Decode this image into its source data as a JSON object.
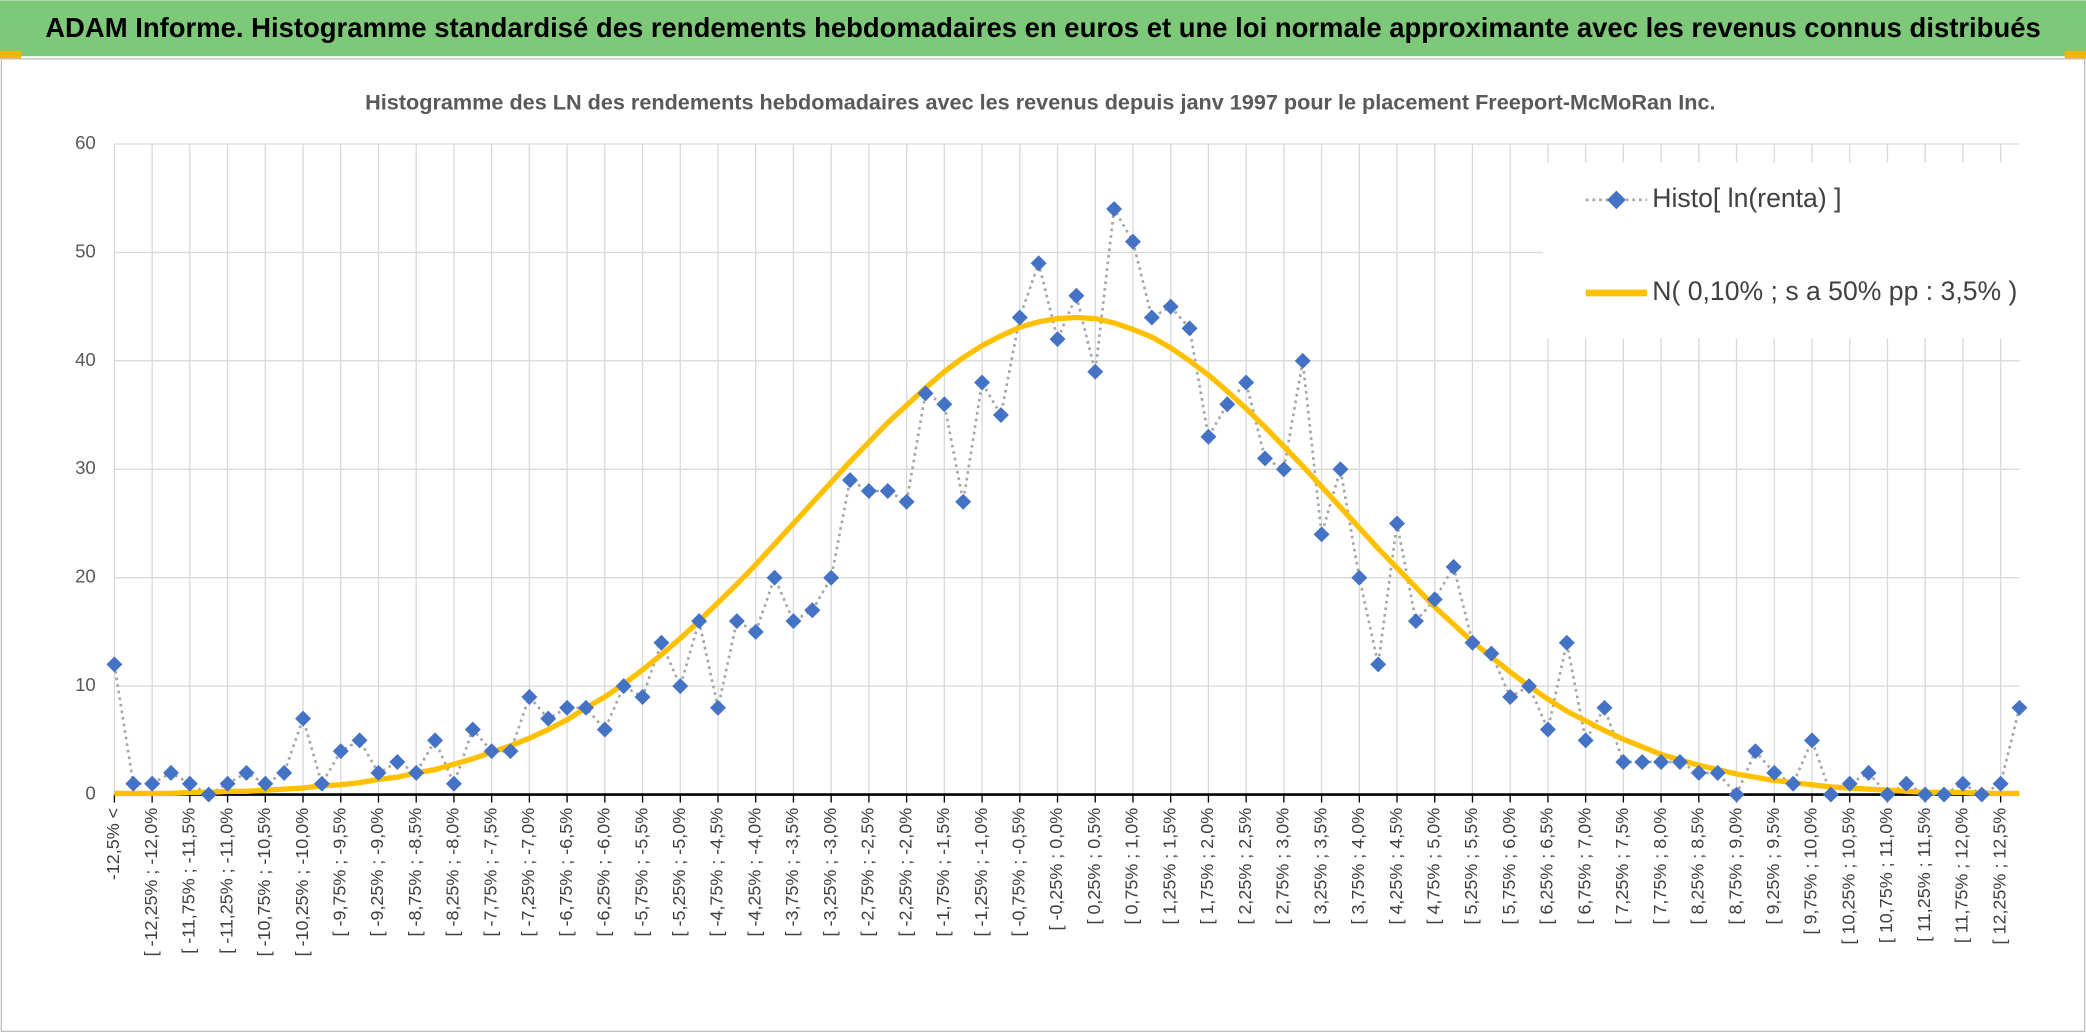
{
  "header": {
    "title": "ADAM Informe. Histogramme standardisé des rendements hebdomadaires en euros et une loi normale approximante avec les revenus connus distribués"
  },
  "chart_data": {
    "type": "line",
    "title": "Histogramme des LN des rendements hebdomadaires avec les revenus depuis janv 1997 pour le placement Freeport-McMoRan  Inc.",
    "categories": [
      "-12,5% <",
      null,
      "[ -12,25% ; -12,0%",
      null,
      "[ -11,75% ; -11,5%",
      null,
      "[ -11,25% ; -11,0%",
      null,
      "[ -10,75% ; -10,5%",
      null,
      "[ -10,25% ; -10,0%",
      null,
      "[ -9,75% ; -9,5%",
      null,
      "[ -9,25% ; -9,0%",
      null,
      "[ -8,75% ; -8,5%",
      null,
      "[ -8,25% ; -8,0%",
      null,
      "[ -7,75% ; -7,5%",
      null,
      "[ -7,25% ; -7,0%",
      null,
      "[ -6,75% ; -6,5%",
      null,
      "[ -6,25% ; -6,0%",
      null,
      "[ -5,75% ; -5,5%",
      null,
      "[ -5,25% ; -5,0%",
      null,
      "[ -4,75% ; -4,5%",
      null,
      "[ -4,25% ; -4,0%",
      null,
      "[ -3,75% ; -3,5%",
      null,
      "[ -3,25% ; -3,0%",
      null,
      "[ -2,75% ; -2,5%",
      null,
      "[ -2,25% ; -2,0%",
      null,
      "[ -1,75% ; -1,5%",
      null,
      "[ -1,25% ; -1,0%",
      null,
      "[ -0,75% ; -0,5%",
      null,
      "[ -0,25% ; 0,0%",
      null,
      "[ 0,25% ; 0,5%",
      null,
      "[ 0,75% ; 1,0%",
      null,
      "[ 1,25% ; 1,5%",
      null,
      "[ 1,75% ; 2,0%",
      null,
      "[ 2,25% ; 2,5%",
      null,
      "[ 2,75% ; 3,0%",
      null,
      "[ 3,25% ; 3,5%",
      null,
      "[ 3,75% ; 4,0%",
      null,
      "[ 4,25% ; 4,5%",
      null,
      "[ 4,75% ; 5,0%",
      null,
      "[ 5,25% ; 5,5%",
      null,
      "[ 5,75% ; 6,0%",
      null,
      "[ 6,25% ; 6,5%",
      null,
      "[ 6,75% ; 7,0%",
      null,
      "[ 7,25% ; 7,5%",
      null,
      "[ 7,75% ; 8,0%",
      null,
      "[ 8,25% ; 8,5%",
      null,
      "[ 8,75% ; 9,0%",
      null,
      "[ 9,25% ; 9,5%",
      null,
      "[ 9,75% ; 10,0%",
      null,
      "[ 10,25% ; 10,5%",
      null,
      "[ 10,75% ; 11,0%",
      null,
      "[ 11,25% ; 11,5%",
      null,
      "[ 11,75% ; 12,0%",
      null,
      "[ 12,25% ; 12,5%",
      null
    ],
    "series": [
      {
        "name": "Histo[ ln(renta) ]",
        "color": "#4472c4",
        "values": [
          12,
          1,
          1,
          2,
          1,
          0,
          1,
          2,
          1,
          2,
          7,
          1,
          4,
          5,
          2,
          3,
          2,
          5,
          1,
          6,
          4,
          4,
          9,
          7,
          8,
          8,
          6,
          10,
          9,
          14,
          10,
          16,
          8,
          16,
          15,
          20,
          16,
          17,
          20,
          29,
          28,
          28,
          27,
          37,
          36,
          27,
          38,
          35,
          44,
          49,
          42,
          46,
          39,
          54,
          51,
          44,
          45,
          43,
          33,
          36,
          38,
          31,
          30,
          40,
          24,
          30,
          20,
          12,
          25,
          16,
          18,
          21,
          14,
          13,
          9,
          10,
          6,
          14,
          5,
          8,
          3,
          3,
          3,
          3,
          2,
          2,
          0,
          4,
          2,
          1,
          5,
          0,
          1,
          2,
          0,
          1,
          0,
          0,
          1,
          0,
          1,
          8
        ]
      },
      {
        "name": "N( 0,10% ; s a 50% pp : 3,5% )",
        "color": "#ffc000",
        "values": [
          0.1,
          0.1,
          0.1,
          0.1,
          0.2,
          0.2,
          0.3,
          0.3,
          0.4,
          0.5,
          0.6,
          0.8,
          0.9,
          1.1,
          1.4,
          1.6,
          2.0,
          2.3,
          2.8,
          3.3,
          3.9,
          4.5,
          5.2,
          6.0,
          6.9,
          8.0,
          9.0,
          10.2,
          11.5,
          12.9,
          14.4,
          16.0,
          17.7,
          19.4,
          21.2,
          23.1,
          25.0,
          26.9,
          28.8,
          30.7,
          32.5,
          34.3,
          35.9,
          37.5,
          39.0,
          40.3,
          41.4,
          42.3,
          43.1,
          43.6,
          43.9,
          44.0,
          43.9,
          43.5,
          42.9,
          42.2,
          41.2,
          40.0,
          38.7,
          37.2,
          35.6,
          33.9,
          32.1,
          30.3,
          28.4,
          26.5,
          24.6,
          22.7,
          20.9,
          19.1,
          17.3,
          15.7,
          14.1,
          12.7,
          11.3,
          10.0,
          8.8,
          7.7,
          6.8,
          5.9,
          5.1,
          4.4,
          3.7,
          3.2,
          2.7,
          2.3,
          1.9,
          1.6,
          1.3,
          1.1,
          0.9,
          0.7,
          0.6,
          0.5,
          0.4,
          0.3,
          0.2,
          0.2,
          0.2,
          0.1,
          0.1,
          0.1
        ]
      }
    ],
    "ylim": [
      0,
      60
    ],
    "yticks": [
      0,
      10,
      20,
      30,
      40,
      50,
      60
    ],
    "grid": true,
    "legend": "upper right"
  }
}
